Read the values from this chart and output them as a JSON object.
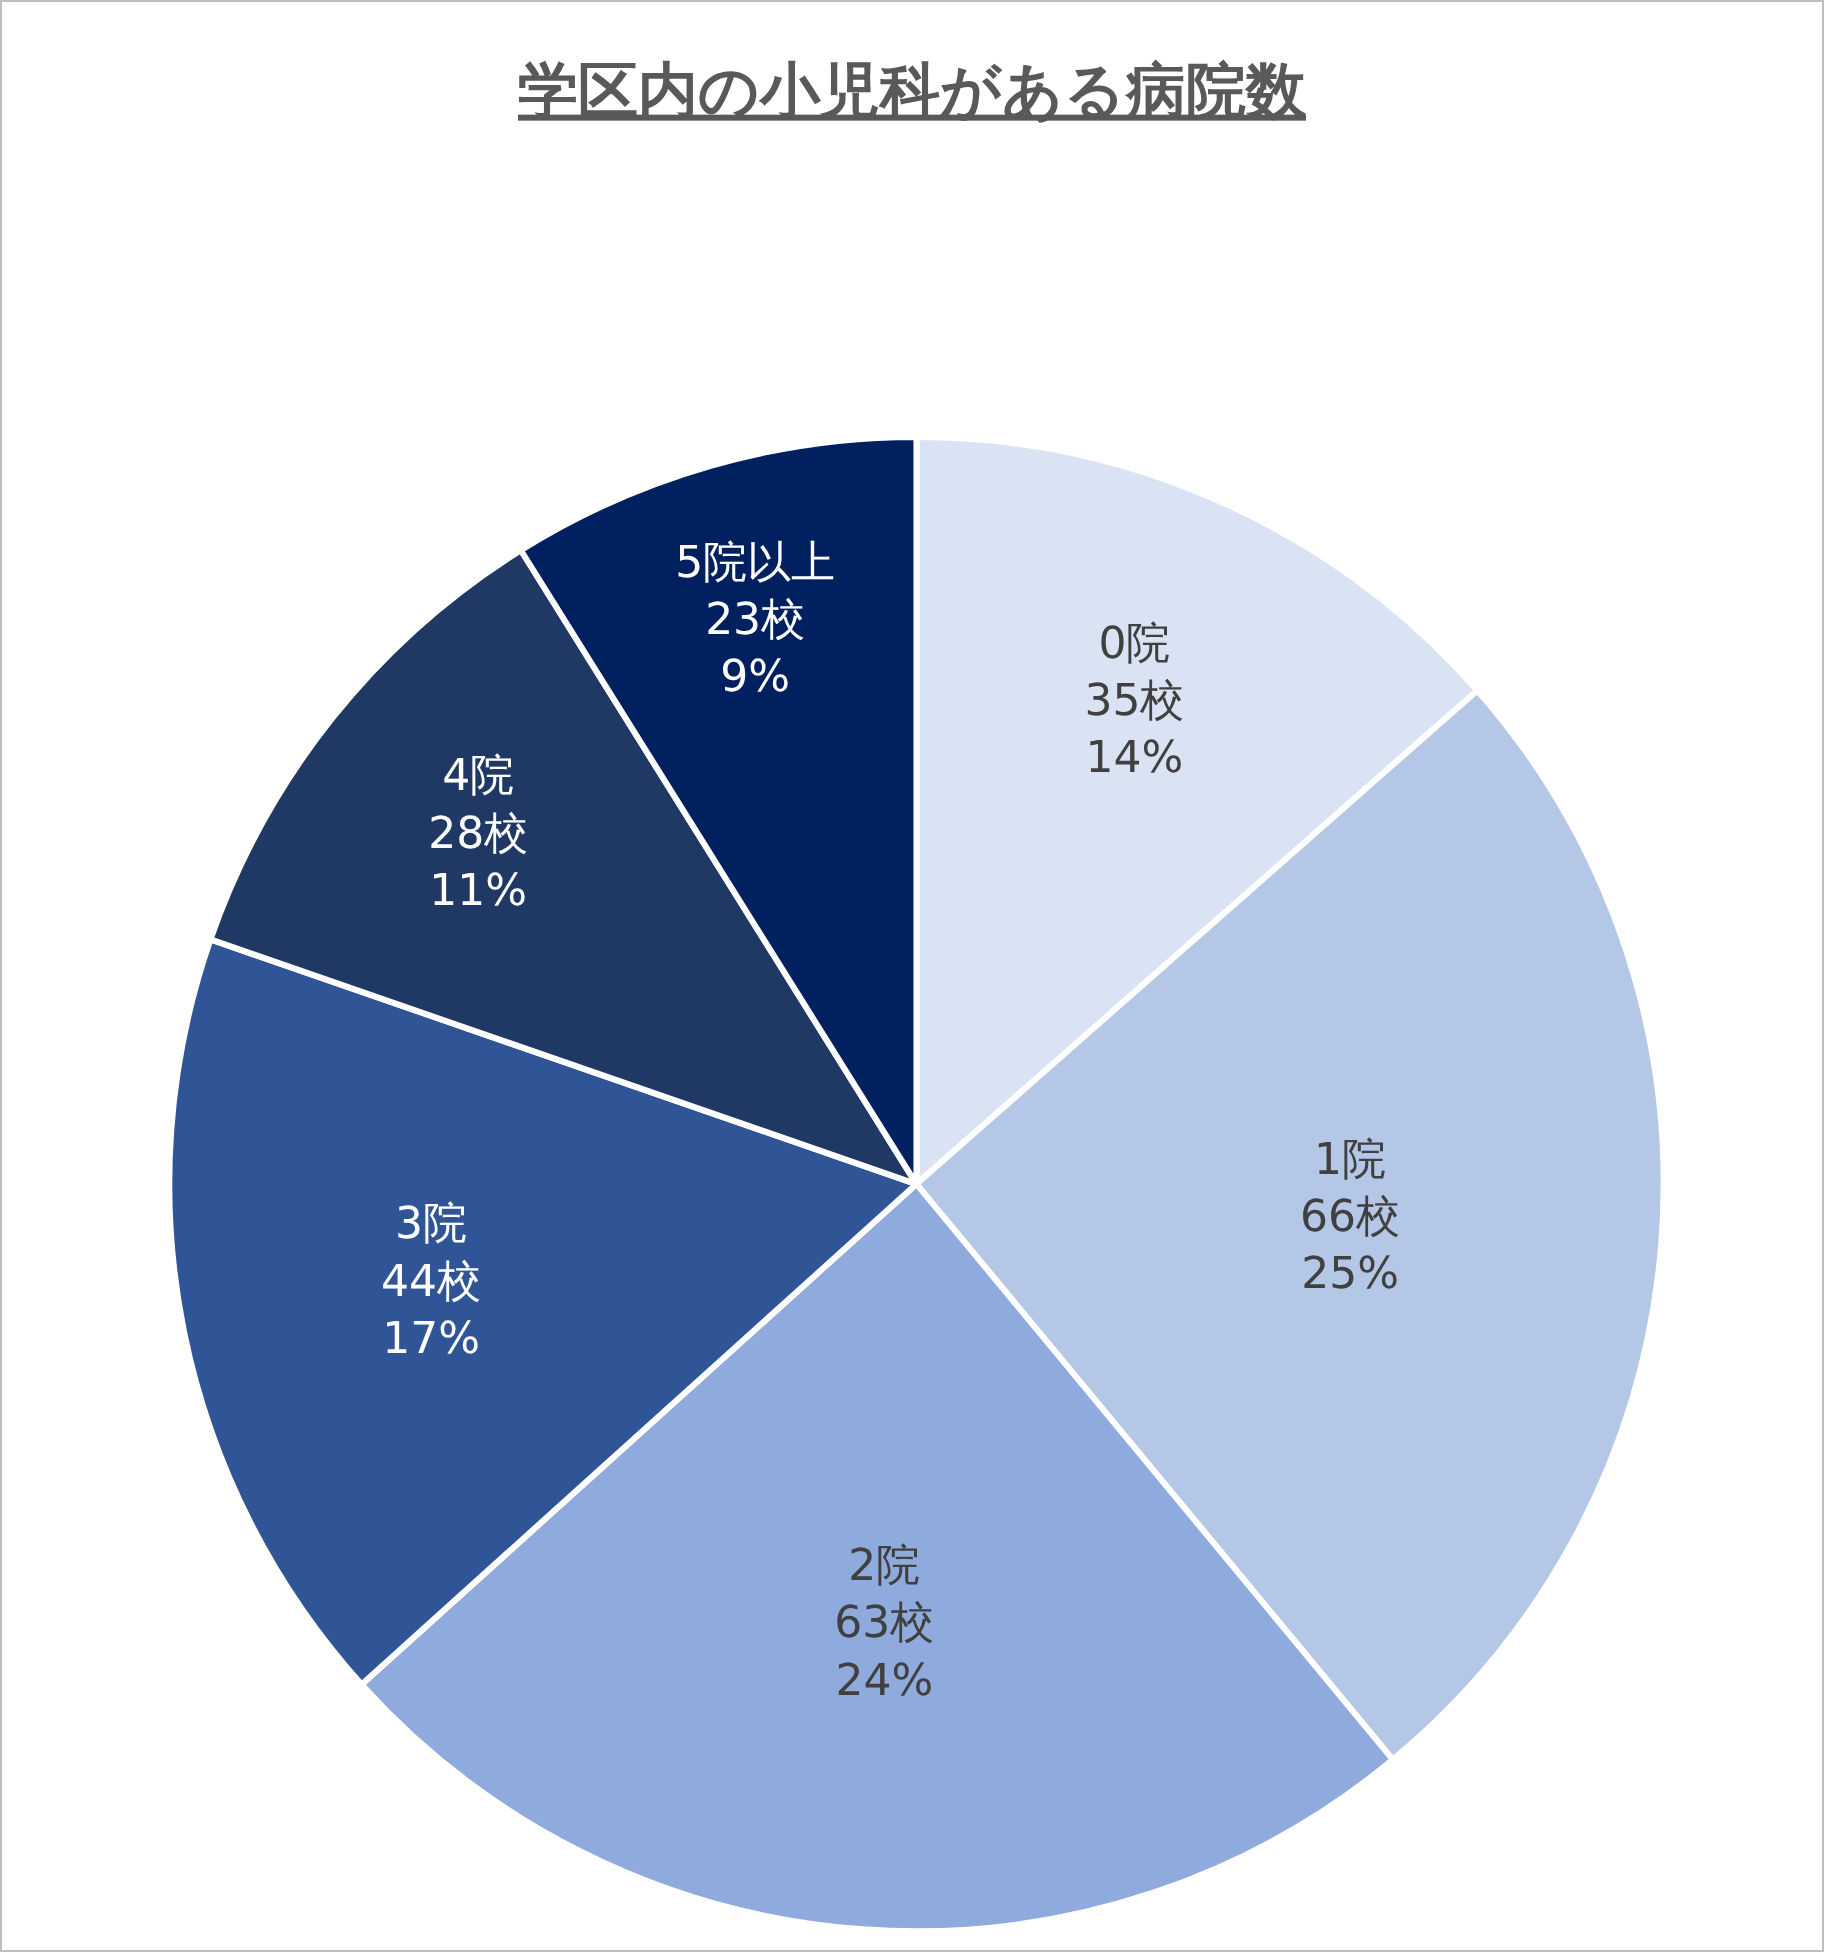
{
  "chart_data": {
    "type": "pie",
    "title": "学区内の小児科がある病院数",
    "categories": [
      "0院",
      "1院",
      "2院",
      "3院",
      "4院",
      "5院以上"
    ],
    "values": [
      35,
      66,
      63,
      44,
      28,
      23
    ],
    "value_labels": [
      "35校\n14%",
      "66校\n25%",
      "63校\n24%",
      "44校\n17%",
      "28校\n11%",
      "23校\n9%"
    ],
    "colors": [
      "#dae3f3",
      "#b4c7e7",
      "#8faadc",
      "#2f5597",
      "#203864",
      "#002060"
    ],
    "legend": false
  }
}
